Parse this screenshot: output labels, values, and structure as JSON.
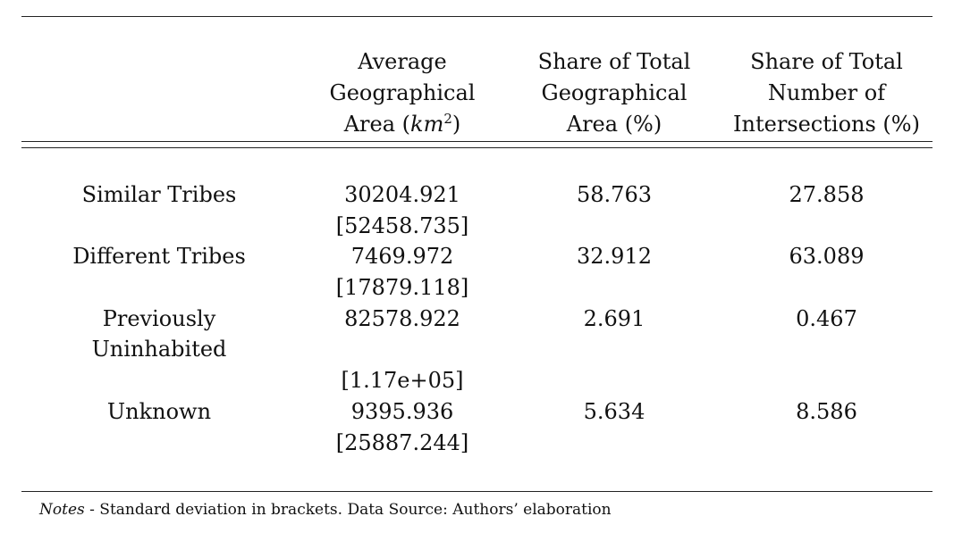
{
  "table": {
    "header": {
      "col1": [
        "Average",
        "Geographical",
        "Area ("
      ],
      "col1_unit": "km",
      "col1_unit_exp": "2",
      "col1_close": ")",
      "col2": [
        "Share of Total",
        "Geographical",
        "Area (%)"
      ],
      "col3": [
        "Share of Total",
        "Number of",
        "Intersections (%)"
      ]
    },
    "rows": [
      {
        "label": [
          "Similar Tribes"
        ],
        "avg_area": "30204.921",
        "avg_area_sd": "[52458.735]",
        "share_area": "58.763",
        "share_intersections": "27.858"
      },
      {
        "label": [
          "Different Tribes"
        ],
        "avg_area": "7469.972",
        "avg_area_sd": "[17879.118]",
        "share_area": "32.912",
        "share_intersections": "63.089"
      },
      {
        "label": [
          "Previously",
          "Uninhabited"
        ],
        "avg_area": "82578.922",
        "avg_area_sd": "[1.17e+05]",
        "share_area": "2.691",
        "share_intersections": "0.467"
      },
      {
        "label": [
          "Unknown"
        ],
        "avg_area": "9395.936",
        "avg_area_sd": "[25887.244]",
        "share_area": "5.634",
        "share_intersections": "8.586"
      }
    ]
  },
  "notes": {
    "label": "Notes",
    "separator": " - ",
    "text": " Standard deviation in brackets. Data Source: Authors’ elaboration"
  }
}
